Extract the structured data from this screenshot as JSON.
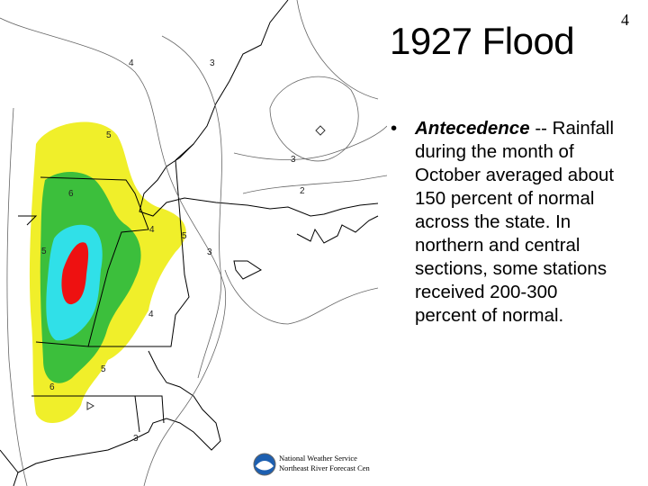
{
  "page_number": "4",
  "title": "1927 Flood",
  "bullets": [
    {
      "term": "Antecedence",
      "separator": "--",
      "text": "Rainfall during the month of October averaged about 150 percent of normal across the state. In northern and central sections, some stations received 200-300 percent of normal."
    }
  ],
  "map": {
    "contour_labels": [
      "4",
      "3",
      "3",
      "2",
      "5",
      "6",
      "5",
      "4",
      "5",
      "3",
      "4",
      "5",
      "6",
      "3"
    ],
    "credit": [
      "National Weather Service",
      "Northeast River Forecast Cen"
    ]
  }
}
